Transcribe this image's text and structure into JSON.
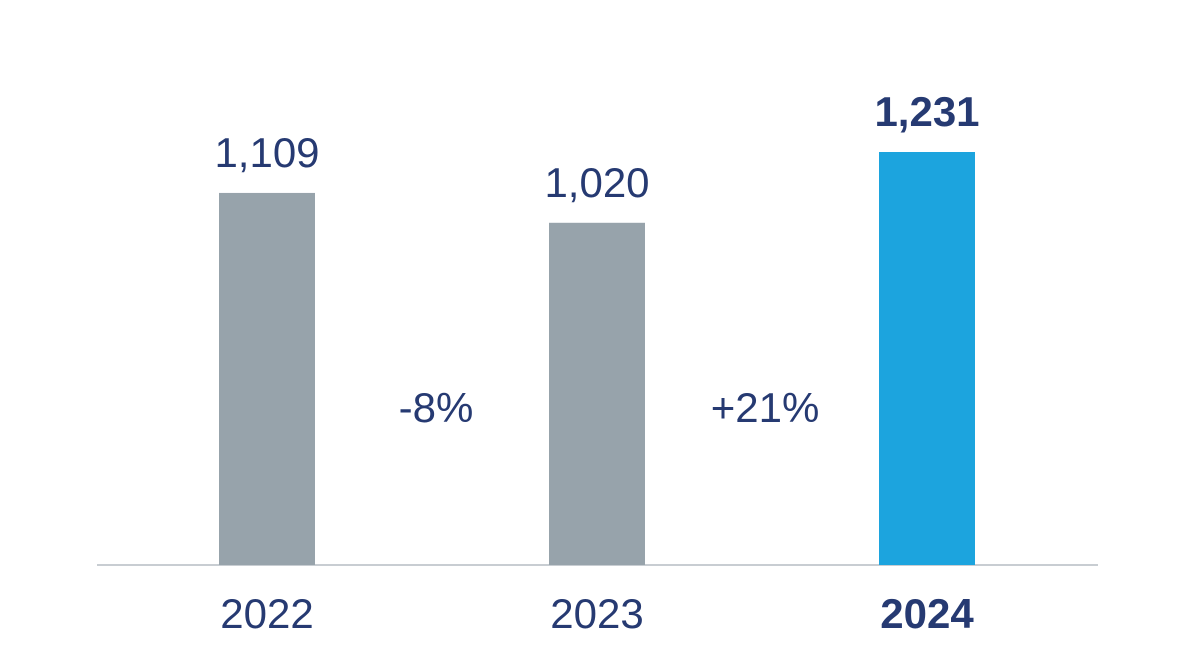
{
  "chart_data": {
    "type": "bar",
    "categories": [
      "2022",
      "2023",
      "2024"
    ],
    "values": [
      1109,
      1020,
      1231
    ],
    "value_labels": [
      "1,109",
      "1,020",
      "1,231"
    ],
    "highlight_index": 2,
    "changes": [
      "-8%",
      "+21%"
    ],
    "ylim": [
      0,
      1231
    ],
    "grid": false,
    "colors": {
      "bar_default": "#97a3ab",
      "bar_highlight": "#1ca4de",
      "text": "#263a72",
      "axis": "#c8cdd2"
    }
  }
}
